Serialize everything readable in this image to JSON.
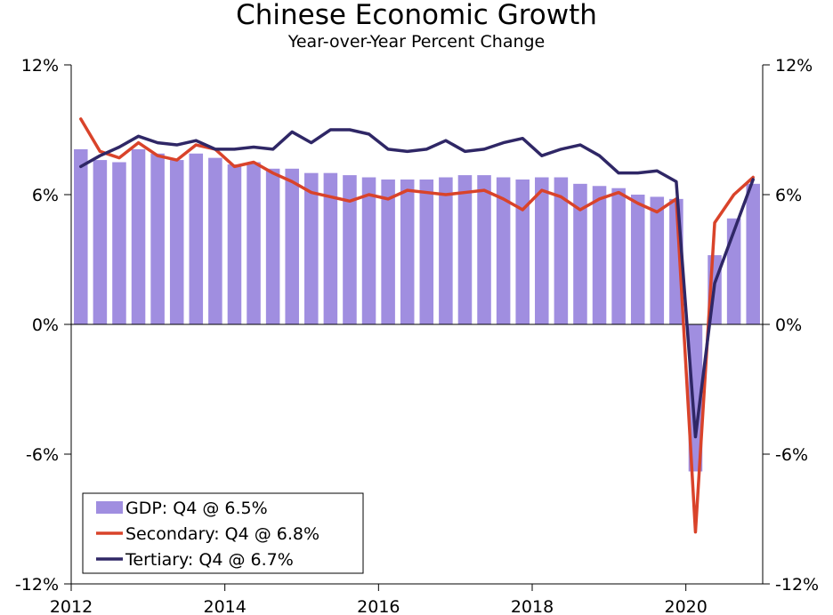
{
  "chart_data": {
    "type": "bar+line",
    "title": "Chinese Economic Growth",
    "subtitle": "Year-over-Year Percent Change",
    "ylim": [
      -12,
      12
    ],
    "yticks": [
      12,
      6,
      0,
      -6,
      -12
    ],
    "ytick_labels": [
      "12%",
      "6%",
      "0%",
      "-6%",
      "-12%"
    ],
    "xlim": [
      2012,
      2021
    ],
    "xticks": [
      2012,
      2014,
      2016,
      2018,
      2020
    ],
    "xtick_labels": [
      "2012",
      "2014",
      "2016",
      "2018",
      "2020"
    ],
    "quarters": [
      "2012Q1",
      "2012Q2",
      "2012Q3",
      "2012Q4",
      "2013Q1",
      "2013Q2",
      "2013Q3",
      "2013Q4",
      "2014Q1",
      "2014Q2",
      "2014Q3",
      "2014Q4",
      "2015Q1",
      "2015Q2",
      "2015Q3",
      "2015Q4",
      "2016Q1",
      "2016Q2",
      "2016Q3",
      "2016Q4",
      "2017Q1",
      "2017Q2",
      "2017Q3",
      "2017Q4",
      "2018Q1",
      "2018Q2",
      "2018Q3",
      "2018Q4",
      "2019Q1",
      "2019Q2",
      "2019Q3",
      "2019Q4",
      "2020Q1",
      "2020Q2",
      "2020Q3",
      "2020Q4"
    ],
    "series": [
      {
        "name": "GDP",
        "kind": "bar",
        "color": "#a08ee0",
        "values": [
          8.1,
          7.6,
          7.5,
          8.1,
          7.9,
          7.6,
          7.9,
          7.7,
          7.4,
          7.5,
          7.2,
          7.2,
          7.0,
          7.0,
          6.9,
          6.8,
          6.7,
          6.7,
          6.7,
          6.8,
          6.9,
          6.9,
          6.8,
          6.7,
          6.8,
          6.8,
          6.5,
          6.4,
          6.3,
          6.0,
          5.9,
          5.8,
          -6.8,
          3.2,
          4.9,
          6.5
        ]
      },
      {
        "name": "Secondary",
        "kind": "line",
        "color": "#d9432a",
        "values": [
          9.5,
          8.0,
          7.7,
          8.4,
          7.8,
          7.6,
          8.3,
          8.1,
          7.3,
          7.5,
          7.0,
          6.6,
          6.1,
          5.9,
          5.7,
          6.0,
          5.8,
          6.2,
          6.1,
          6.0,
          6.1,
          6.2,
          5.8,
          5.3,
          6.2,
          5.9,
          5.3,
          5.8,
          6.1,
          5.6,
          5.2,
          5.8,
          -9.6,
          4.7,
          6.0,
          6.8
        ]
      },
      {
        "name": "Tertiary",
        "kind": "line",
        "color": "#2f2766",
        "values": [
          7.3,
          7.8,
          8.2,
          8.7,
          8.4,
          8.3,
          8.5,
          8.1,
          8.1,
          8.2,
          8.1,
          8.9,
          8.4,
          9.0,
          9.0,
          8.8,
          8.1,
          8.0,
          8.1,
          8.5,
          8.0,
          8.1,
          8.4,
          8.6,
          7.8,
          8.1,
          8.3,
          7.8,
          7.0,
          7.0,
          7.1,
          6.6,
          -5.2,
          1.9,
          4.3,
          6.7
        ]
      }
    ],
    "legend": {
      "position": "bottom-left",
      "entries": [
        "GDP: Q4 @ 6.5%",
        "Secondary: Q4 @ 6.8%",
        "Tertiary: Q4 @ 6.7%"
      ]
    }
  }
}
